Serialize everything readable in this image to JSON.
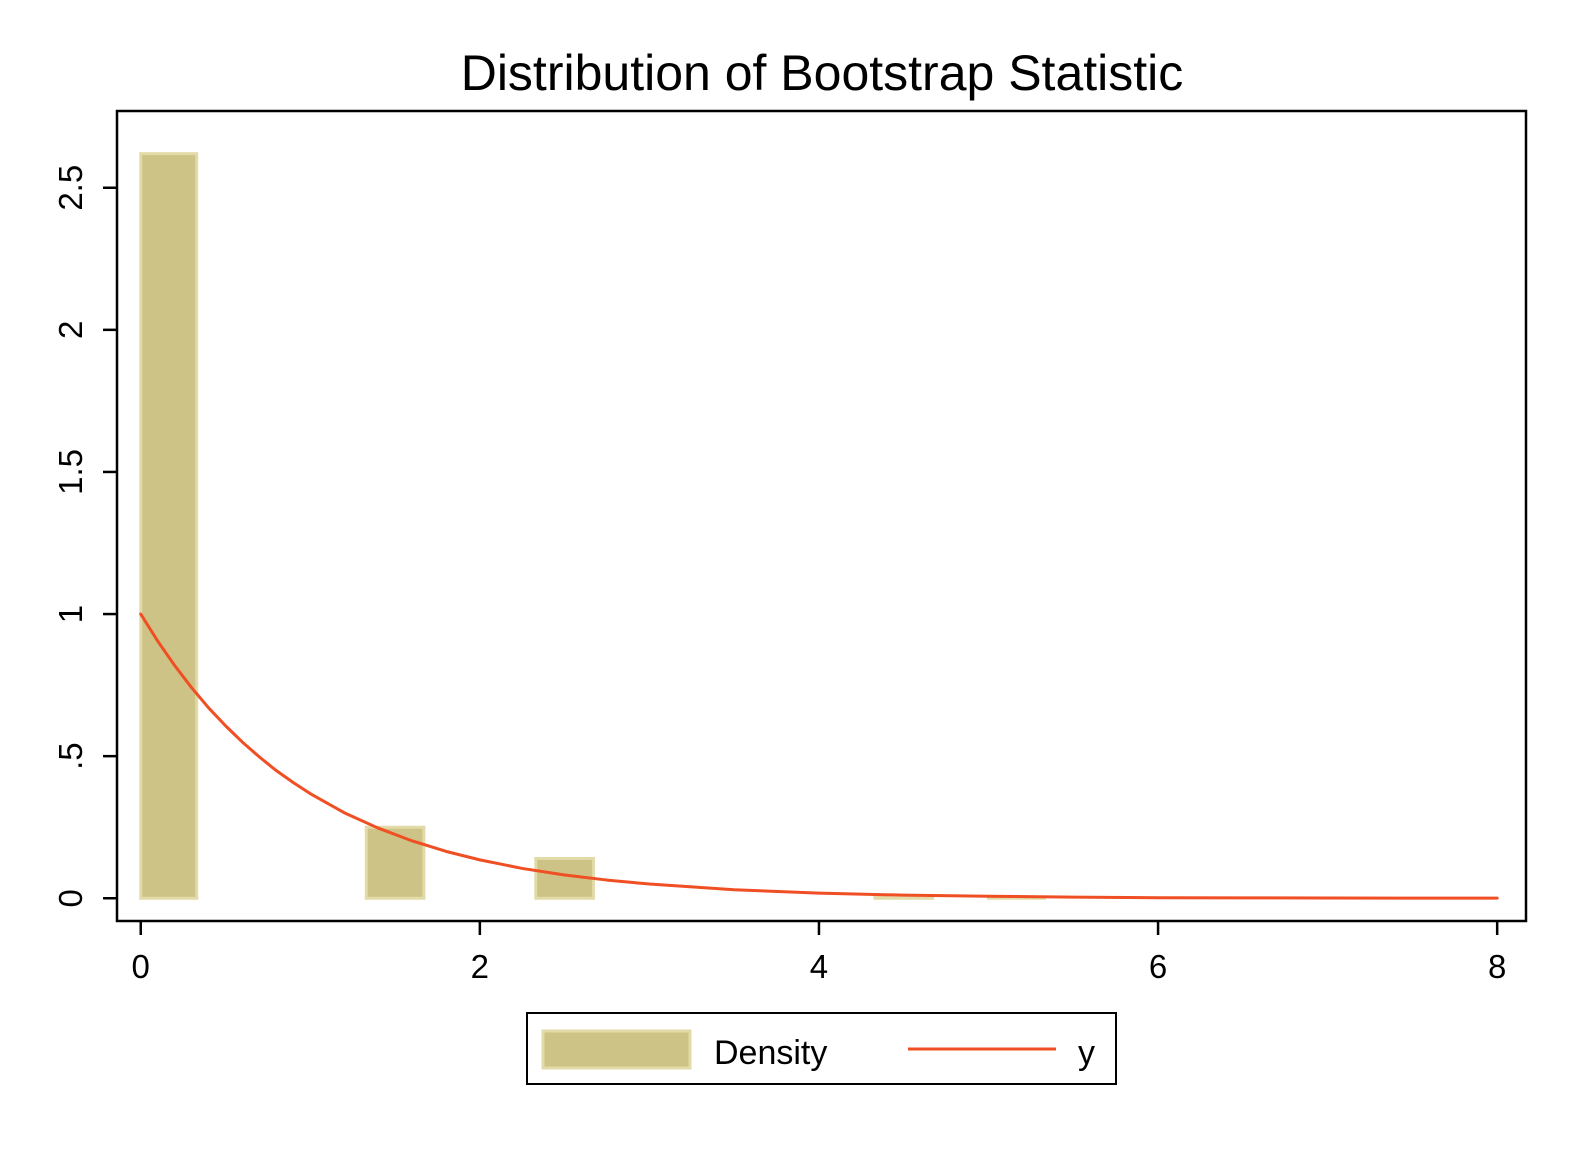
{
  "chart_data": {
    "type": "bar",
    "title": "Distribution of Bootstrap Statistic",
    "xlabel": "",
    "ylabel": "",
    "xlim": [
      -0.14,
      8.17
    ],
    "ylim": [
      -0.08,
      2.77
    ],
    "x_ticks": [
      "0",
      "2",
      "4",
      "6",
      "8"
    ],
    "x_tick_values": [
      0,
      2,
      4,
      6,
      8
    ],
    "y_ticks": [
      "0",
      ".5",
      "1",
      "1.5",
      "2",
      "2.5"
    ],
    "y_tick_values": [
      0,
      0.5,
      1,
      1.5,
      2,
      2.5
    ],
    "grid": false,
    "legend_position": "bottom",
    "histogram": {
      "name": "Density",
      "color": "#cdc386",
      "edge_color": "#e2dba8",
      "bins": [
        {
          "x0": 0.0,
          "x1": 0.33,
          "value": 2.62
        },
        {
          "x0": 1.33,
          "x1": 1.67,
          "value": 0.25
        },
        {
          "x0": 2.33,
          "x1": 2.67,
          "value": 0.14
        },
        {
          "x0": 4.33,
          "x1": 4.67,
          "value": 0.004
        },
        {
          "x0": 5.0,
          "x1": 5.33,
          "value": 0.004
        }
      ]
    },
    "series": [
      {
        "name": "y",
        "type": "line",
        "color": "#f04e23",
        "x": [
          0,
          0.1,
          0.2,
          0.3,
          0.4,
          0.5,
          0.6,
          0.7,
          0.8,
          0.9,
          1.0,
          1.2,
          1.4,
          1.6,
          1.8,
          2.0,
          2.25,
          2.5,
          2.75,
          3.0,
          3.5,
          4.0,
          4.5,
          5.0,
          5.5,
          6.0,
          6.5,
          7.0,
          7.5,
          8.0
        ],
        "y": [
          1.0,
          0.905,
          0.819,
          0.741,
          0.67,
          0.607,
          0.549,
          0.497,
          0.449,
          0.407,
          0.368,
          0.301,
          0.247,
          0.202,
          0.165,
          0.135,
          0.105,
          0.082,
          0.064,
          0.05,
          0.03,
          0.018,
          0.011,
          0.007,
          0.004,
          0.002,
          0.0015,
          0.0009,
          0.0006,
          0.0003
        ]
      }
    ],
    "legend": [
      "Density",
      "y"
    ]
  }
}
